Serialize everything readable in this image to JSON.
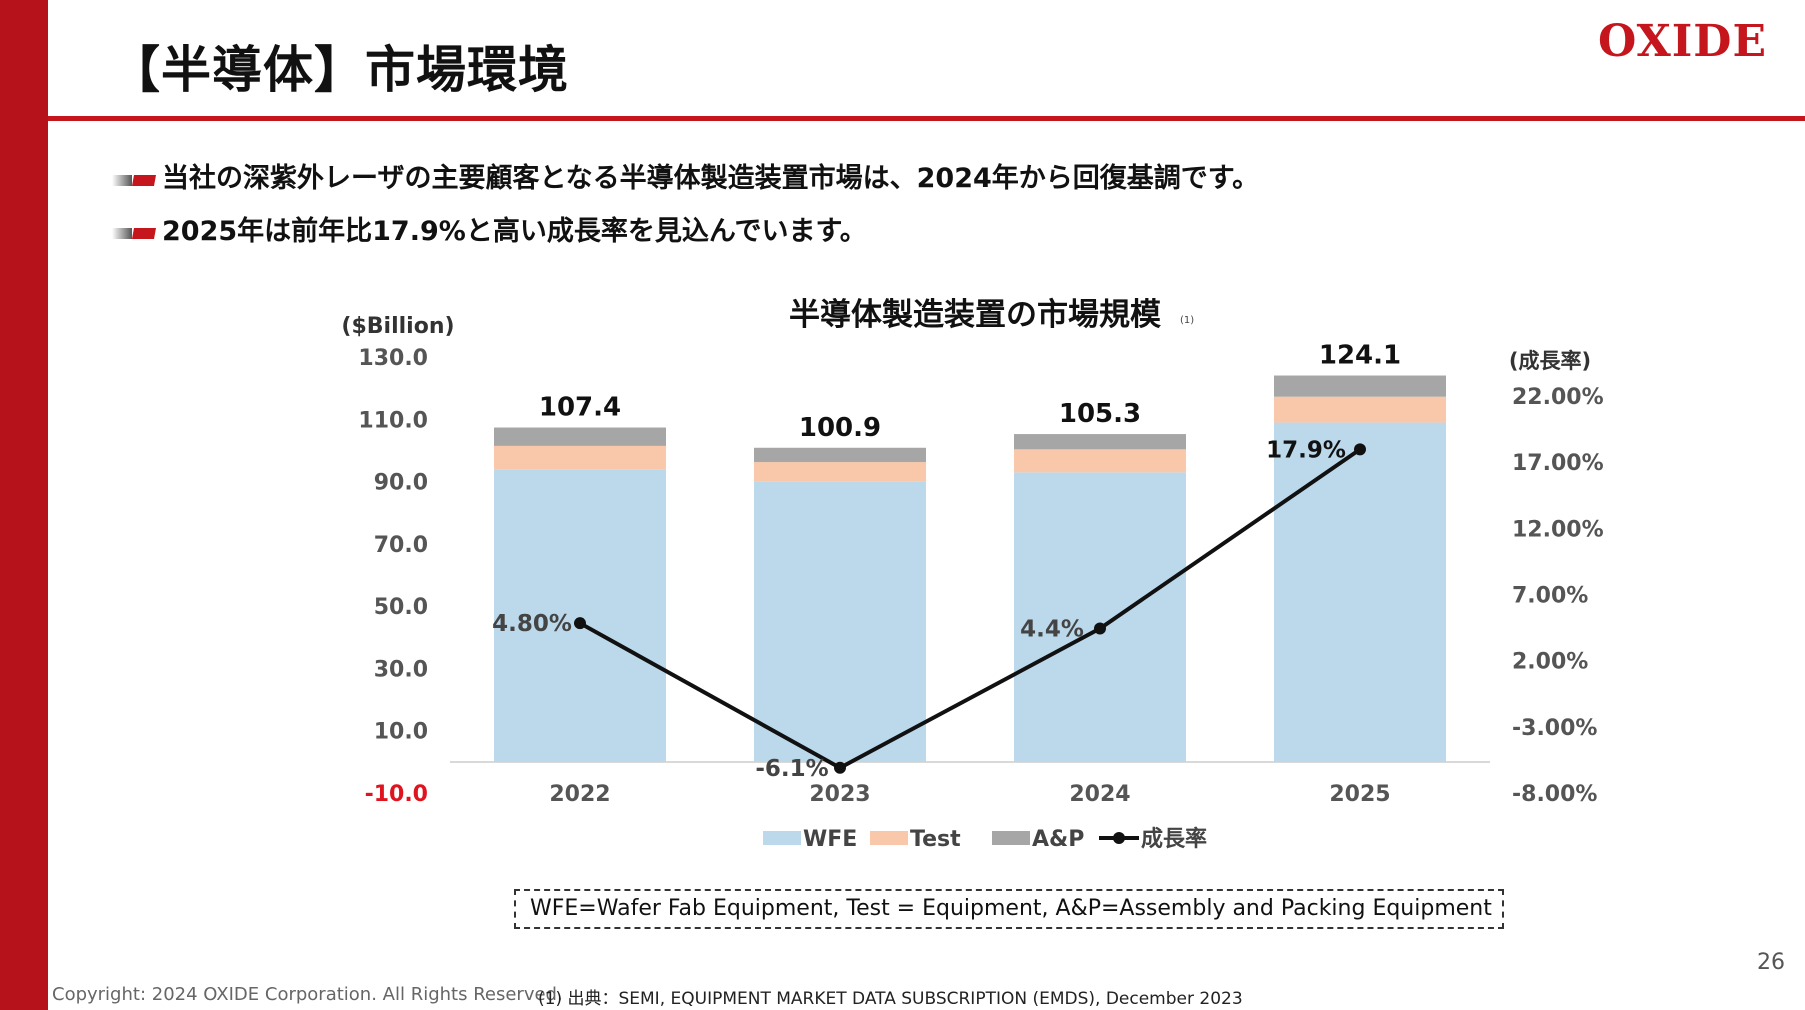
{
  "slide": {
    "title": "【半導体】市場環境",
    "logo": "OXIDE",
    "bullets": [
      "当社の深紫外レーザの主要顧客となる半導体製造装置市場は、2024年から回復基調です。",
      "2025年は前年比17.9%と高い成長率を見込んでいます。"
    ],
    "note": "WFE=Wafer Fab Equipment,  Test = Equipment, A&P=Assembly and Packing Equipment",
    "page_number": "26",
    "copyright": "Copyright: 2024 OXIDE Corporation. All Rights Reserved.",
    "source": "(1) 出典：SEMI, EQUIPMENT MARKET DATA SUBSCRIPTION (EMDS), December 2023",
    "colors": {
      "accent": "#c4161c",
      "sidebar": "#b5121b"
    }
  },
  "chart_data": {
    "type": "bar",
    "title": "半導体製造装置の市場規模",
    "title_footnote": "(1)",
    "ylabel": "($Billion)",
    "y2label": "(成長率)",
    "categories": [
      "2022",
      "2023",
      "2024",
      "2025"
    ],
    "ylim": [
      -10,
      130
    ],
    "yticks": [
      "130.0",
      "110.0",
      "90.0",
      "70.0",
      "50.0",
      "30.0",
      "10.0",
      "-10.0"
    ],
    "y2lim": [
      -8,
      22
    ],
    "y2ticks": [
      "22.00%",
      "17.00%",
      "12.00%",
      "7.00%",
      "2.00%",
      "-3.00%",
      "-8.00%"
    ],
    "stacked": true,
    "series": [
      {
        "name": "WFE",
        "values": [
          94.0,
          90.0,
          93.0,
          109.0
        ],
        "color": "#bcd9ec"
      },
      {
        "name": "Test",
        "values": [
          7.5,
          6.3,
          7.4,
          8.3
        ],
        "color": "#f9c7a9"
      },
      {
        "name": "A&P",
        "values": [
          5.9,
          4.6,
          4.9,
          6.8
        ],
        "color": "#a6a6a6"
      }
    ],
    "totals": [
      "107.4",
      "100.9",
      "105.3",
      "124.1"
    ],
    "line": {
      "name": "成長率",
      "values": [
        4.8,
        -6.1,
        4.4,
        17.9
      ],
      "labels": [
        "4.80%",
        "-6.1%",
        "4.4%",
        "17.9%"
      ],
      "color": "#111111"
    },
    "legend_position": "bottom",
    "grid": false
  }
}
